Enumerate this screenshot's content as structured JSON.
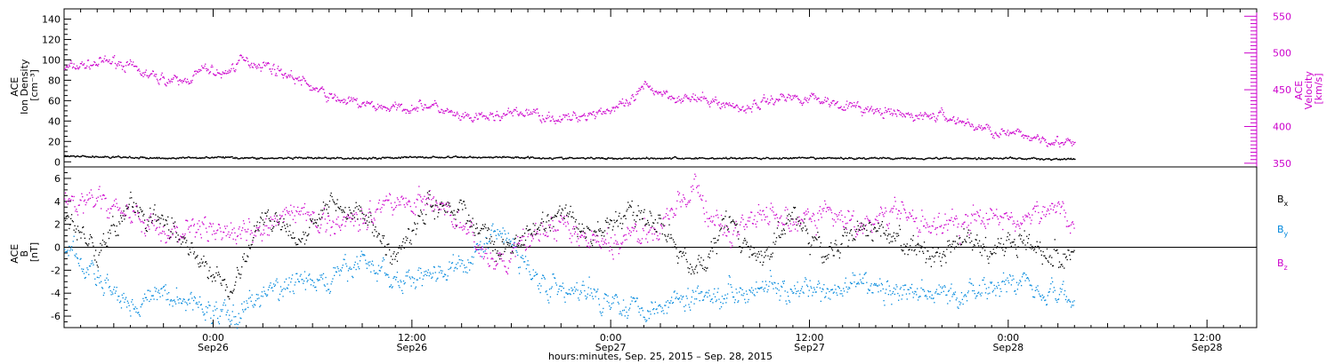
{
  "chart_data": [
    {
      "type": "scatter",
      "panel": "top",
      "left_axis_label": [
        "ACE",
        "Ion Density",
        "[cm⁻³]"
      ],
      "right_axis_label": [
        "ACE",
        "Velocity",
        "[km/s]"
      ],
      "left_ylim": [
        -5,
        150
      ],
      "left_ticks": [
        0,
        20,
        40,
        60,
        80,
        100,
        120,
        140
      ],
      "left_tick_labels": [
        "0",
        "20",
        "40",
        "60",
        "80",
        "100",
        "120",
        "140"
      ],
      "right_ylim": [
        345,
        560
      ],
      "right_ticks": [
        350,
        400,
        450,
        500,
        550
      ],
      "right_tick_labels": [
        "350",
        "400",
        "450",
        "500",
        "550"
      ],
      "xlim_hours": [
        -9,
        63
      ],
      "series": [
        {
          "name": "Ion Density",
          "axis": "left",
          "color": "#000000",
          "x_hours": [
            -9,
            -6,
            -3,
            0,
            3,
            6,
            9,
            12,
            15,
            18,
            21,
            24,
            27,
            30,
            33,
            36,
            39,
            42,
            45,
            48,
            51,
            52
          ],
          "values": [
            6,
            5,
            4,
            5,
            4,
            4,
            4,
            5,
            5,
            5,
            4,
            4,
            4,
            4,
            4,
            4,
            4,
            4,
            4,
            4,
            3,
            3
          ]
        },
        {
          "name": "Velocity",
          "axis": "right",
          "color": "#cc00cc",
          "x_hours": [
            -9,
            -6,
            -4,
            -2,
            -0.5,
            0.5,
            1.5,
            3,
            5,
            7,
            9,
            11,
            13,
            15,
            17,
            19,
            21,
            23,
            25,
            26,
            28,
            30,
            32,
            34,
            36,
            38,
            40,
            42,
            44,
            46,
            48,
            50,
            52
          ],
          "values": [
            480,
            490,
            470,
            460,
            480,
            470,
            490,
            485,
            465,
            440,
            430,
            425,
            430,
            410,
            415,
            420,
            410,
            420,
            430,
            455,
            440,
            435,
            425,
            440,
            440,
            430,
            420,
            415,
            415,
            400,
            390,
            385,
            375
          ]
        }
      ]
    },
    {
      "type": "scatter",
      "panel": "bottom",
      "left_axis_label": [
        "ACE",
        "B",
        "[nT]"
      ],
      "ylim": [
        -7,
        7
      ],
      "ticks": [
        -6,
        -4,
        -2,
        0,
        2,
        4,
        6
      ],
      "tick_labels": [
        "-6",
        "-4",
        "-2",
        "0",
        "2",
        "4",
        "6"
      ],
      "xlim_hours": [
        -9,
        63
      ],
      "legend": [
        {
          "main": "B",
          "sub": "x",
          "color": "#000000"
        },
        {
          "main": "B",
          "sub": "y",
          "color": "#0088dd"
        },
        {
          "main": "B",
          "sub": "z",
          "color": "#cc00cc"
        }
      ],
      "series": [
        {
          "name": "Bx",
          "color": "#000000",
          "x_hours": [
            -9,
            -7,
            -5,
            -3,
            -1,
            1,
            3,
            5,
            7,
            9,
            11,
            13,
            15,
            17,
            19,
            21,
            23,
            25,
            27,
            29,
            31,
            33,
            35,
            37,
            39,
            41,
            43,
            45,
            47,
            49,
            51,
            52
          ],
          "values": [
            3,
            0,
            4,
            2,
            -1,
            -4,
            3,
            1,
            4,
            3,
            -1,
            4,
            3,
            0,
            1,
            3,
            1,
            3,
            2,
            -2,
            2,
            -1,
            3,
            -1,
            2,
            1,
            -1,
            1,
            0,
            1,
            -1,
            0
          ]
        },
        {
          "name": "By",
          "color": "#0088dd",
          "x_hours": [
            -9,
            -7,
            -5,
            -3,
            -1,
            1,
            3,
            5,
            7,
            9,
            11,
            13,
            15,
            17,
            19,
            21,
            23,
            25,
            27,
            29,
            31,
            33,
            35,
            37,
            39,
            41,
            43,
            45,
            47,
            49,
            51,
            52
          ],
          "values": [
            0,
            -3,
            -5,
            -4,
            -5,
            -6,
            -4,
            -3,
            -3,
            -1,
            -3,
            -2,
            -2,
            2,
            -2,
            -4,
            -4,
            -5,
            -5,
            -4,
            -4,
            -3,
            -4,
            -4,
            -3,
            -4,
            -4,
            -4,
            -3,
            -3,
            -4,
            -5
          ]
        },
        {
          "name": "Bz",
          "color": "#cc00cc",
          "x_hours": [
            -9,
            -7,
            -5,
            -3,
            -1,
            1,
            3,
            5,
            7,
            9,
            11,
            13,
            15,
            17,
            19,
            21,
            23,
            25,
            27,
            29,
            31,
            33,
            35,
            37,
            39,
            41,
            43,
            45,
            47,
            49,
            51,
            52
          ],
          "values": [
            4,
            4,
            3,
            1,
            2,
            1,
            2,
            3,
            2,
            3,
            4,
            4,
            2,
            -2,
            1,
            2,
            0,
            1,
            2,
            5,
            1,
            3,
            2,
            3,
            2,
            3,
            2,
            2,
            3,
            2,
            4,
            1
          ]
        }
      ]
    }
  ],
  "x_axis": {
    "ticks_hours": [
      0,
      12,
      24,
      36,
      48,
      60
    ],
    "time_labels": [
      "0:00",
      "12:00",
      "0:00",
      "12:00",
      "0:00",
      "12:00"
    ],
    "date_labels": [
      "Sep26",
      "Sep26",
      "Sep27",
      "Sep27",
      "Sep28",
      "Sep28"
    ],
    "title": "hours:minutes, Sep. 25, 2015 – Sep. 28, 2015"
  }
}
